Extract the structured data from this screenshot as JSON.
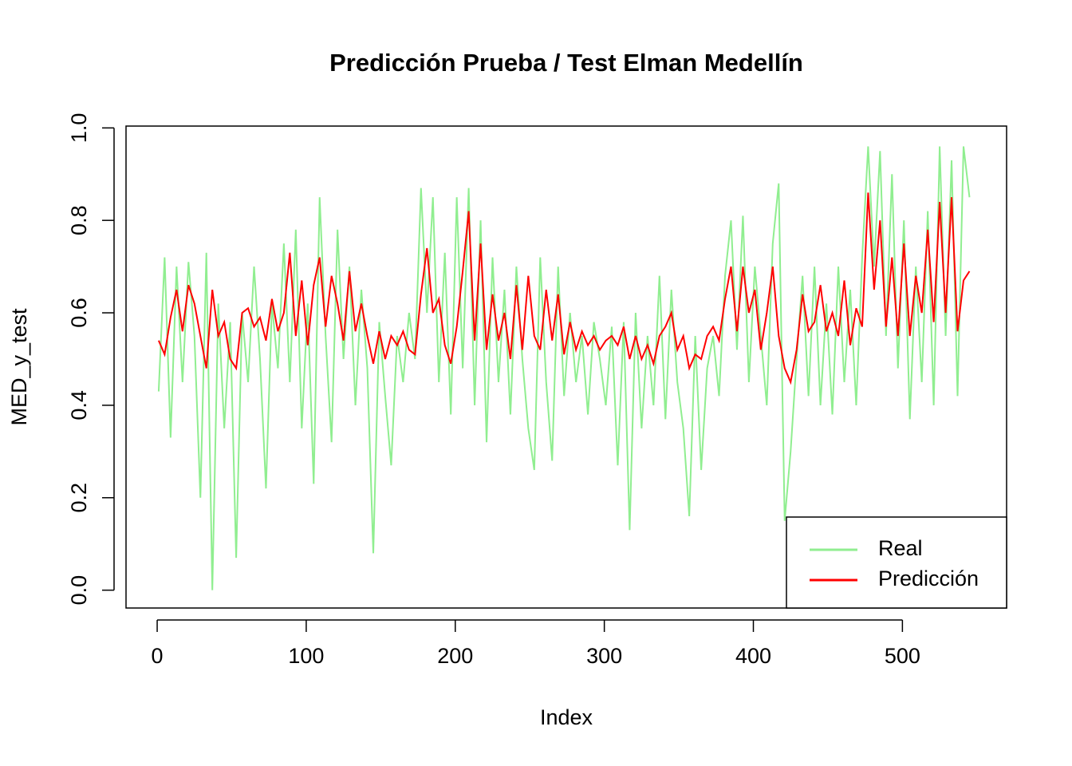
{
  "chart_data": {
    "type": "line",
    "title": "Predicción Prueba / Test Elman Medellín",
    "x_label": "Index",
    "y_label": "MED_y_test",
    "x": [
      1,
      5,
      9,
      13,
      17,
      21,
      25,
      29,
      33,
      37,
      41,
      45,
      49,
      53,
      57,
      61,
      65,
      69,
      73,
      77,
      81,
      85,
      89,
      93,
      97,
      101,
      105,
      109,
      113,
      117,
      121,
      125,
      129,
      133,
      137,
      141,
      145,
      149,
      153,
      157,
      161,
      165,
      169,
      173,
      177,
      181,
      185,
      189,
      193,
      197,
      201,
      205,
      209,
      213,
      217,
      221,
      225,
      229,
      233,
      237,
      241,
      245,
      249,
      253,
      257,
      261,
      265,
      269,
      273,
      277,
      281,
      285,
      289,
      293,
      297,
      301,
      305,
      309,
      313,
      317,
      321,
      325,
      329,
      333,
      337,
      341,
      345,
      349,
      353,
      357,
      361,
      365,
      369,
      373,
      377,
      381,
      385,
      389,
      393,
      397,
      401,
      405,
      409,
      413,
      417,
      421,
      425,
      429,
      433,
      437,
      441,
      445,
      449,
      453,
      457,
      461,
      465,
      469,
      473,
      477,
      481,
      485,
      489,
      493,
      497,
      501,
      505,
      509,
      513,
      517,
      521,
      525,
      529,
      533,
      537,
      541,
      545
    ],
    "series": [
      {
        "name": "Real",
        "color": "#90EE90",
        "values": [
          0.43,
          0.72,
          0.33,
          0.7,
          0.45,
          0.71,
          0.55,
          0.2,
          0.73,
          0.0,
          0.62,
          0.35,
          0.58,
          0.07,
          0.6,
          0.45,
          0.7,
          0.5,
          0.22,
          0.62,
          0.48,
          0.75,
          0.45,
          0.78,
          0.35,
          0.62,
          0.23,
          0.85,
          0.55,
          0.32,
          0.78,
          0.5,
          0.7,
          0.4,
          0.65,
          0.48,
          0.08,
          0.58,
          0.42,
          0.27,
          0.55,
          0.45,
          0.6,
          0.5,
          0.87,
          0.6,
          0.85,
          0.45,
          0.73,
          0.38,
          0.85,
          0.48,
          0.87,
          0.4,
          0.8,
          0.32,
          0.72,
          0.45,
          0.65,
          0.38,
          0.7,
          0.5,
          0.35,
          0.26,
          0.72,
          0.45,
          0.28,
          0.7,
          0.42,
          0.6,
          0.45,
          0.55,
          0.38,
          0.58,
          0.5,
          0.4,
          0.57,
          0.27,
          0.58,
          0.13,
          0.6,
          0.35,
          0.55,
          0.4,
          0.68,
          0.37,
          0.65,
          0.45,
          0.35,
          0.16,
          0.55,
          0.26,
          0.48,
          0.55,
          0.42,
          0.68,
          0.8,
          0.52,
          0.81,
          0.45,
          0.7,
          0.55,
          0.4,
          0.75,
          0.88,
          0.15,
          0.3,
          0.5,
          0.68,
          0.42,
          0.7,
          0.4,
          0.62,
          0.38,
          0.7,
          0.45,
          0.65,
          0.4,
          0.72,
          0.96,
          0.7,
          0.95,
          0.55,
          0.9,
          0.48,
          0.8,
          0.37,
          0.7,
          0.45,
          0.82,
          0.4,
          0.96,
          0.55,
          0.93,
          0.42,
          0.96,
          0.85
        ]
      },
      {
        "name": "Predicción",
        "color": "#FF0000",
        "values": [
          0.54,
          0.51,
          0.59,
          0.65,
          0.56,
          0.66,
          0.62,
          0.55,
          0.48,
          0.65,
          0.55,
          0.58,
          0.5,
          0.48,
          0.6,
          0.61,
          0.57,
          0.59,
          0.54,
          0.63,
          0.56,
          0.6,
          0.73,
          0.55,
          0.67,
          0.53,
          0.66,
          0.72,
          0.57,
          0.68,
          0.62,
          0.54,
          0.69,
          0.56,
          0.62,
          0.55,
          0.49,
          0.56,
          0.5,
          0.55,
          0.53,
          0.56,
          0.52,
          0.51,
          0.64,
          0.74,
          0.6,
          0.63,
          0.53,
          0.49,
          0.57,
          0.69,
          0.82,
          0.54,
          0.75,
          0.52,
          0.64,
          0.54,
          0.6,
          0.5,
          0.66,
          0.52,
          0.68,
          0.55,
          0.52,
          0.65,
          0.54,
          0.64,
          0.51,
          0.58,
          0.52,
          0.56,
          0.53,
          0.55,
          0.52,
          0.54,
          0.55,
          0.53,
          0.57,
          0.5,
          0.55,
          0.5,
          0.53,
          0.49,
          0.55,
          0.57,
          0.6,
          0.52,
          0.55,
          0.48,
          0.51,
          0.5,
          0.55,
          0.57,
          0.54,
          0.63,
          0.7,
          0.56,
          0.7,
          0.6,
          0.65,
          0.52,
          0.6,
          0.7,
          0.55,
          0.48,
          0.45,
          0.52,
          0.64,
          0.56,
          0.58,
          0.66,
          0.56,
          0.6,
          0.55,
          0.67,
          0.53,
          0.61,
          0.57,
          0.86,
          0.65,
          0.8,
          0.57,
          0.72,
          0.55,
          0.75,
          0.55,
          0.68,
          0.6,
          0.78,
          0.58,
          0.84,
          0.6,
          0.85,
          0.56,
          0.67,
          0.69
        ]
      }
    ],
    "xlim": [
      -20.9,
      569.9
    ],
    "ylim": [
      -0.0386,
      1.004
    ],
    "xticks": [
      0,
      100,
      200,
      300,
      400,
      500
    ],
    "yticks": [
      {
        "value": 0,
        "label": "0.0"
      },
      0.2,
      0.4,
      0.6,
      0.8,
      {
        "value": 1,
        "label": "1.0"
      }
    ],
    "legend": "bottom-right"
  }
}
